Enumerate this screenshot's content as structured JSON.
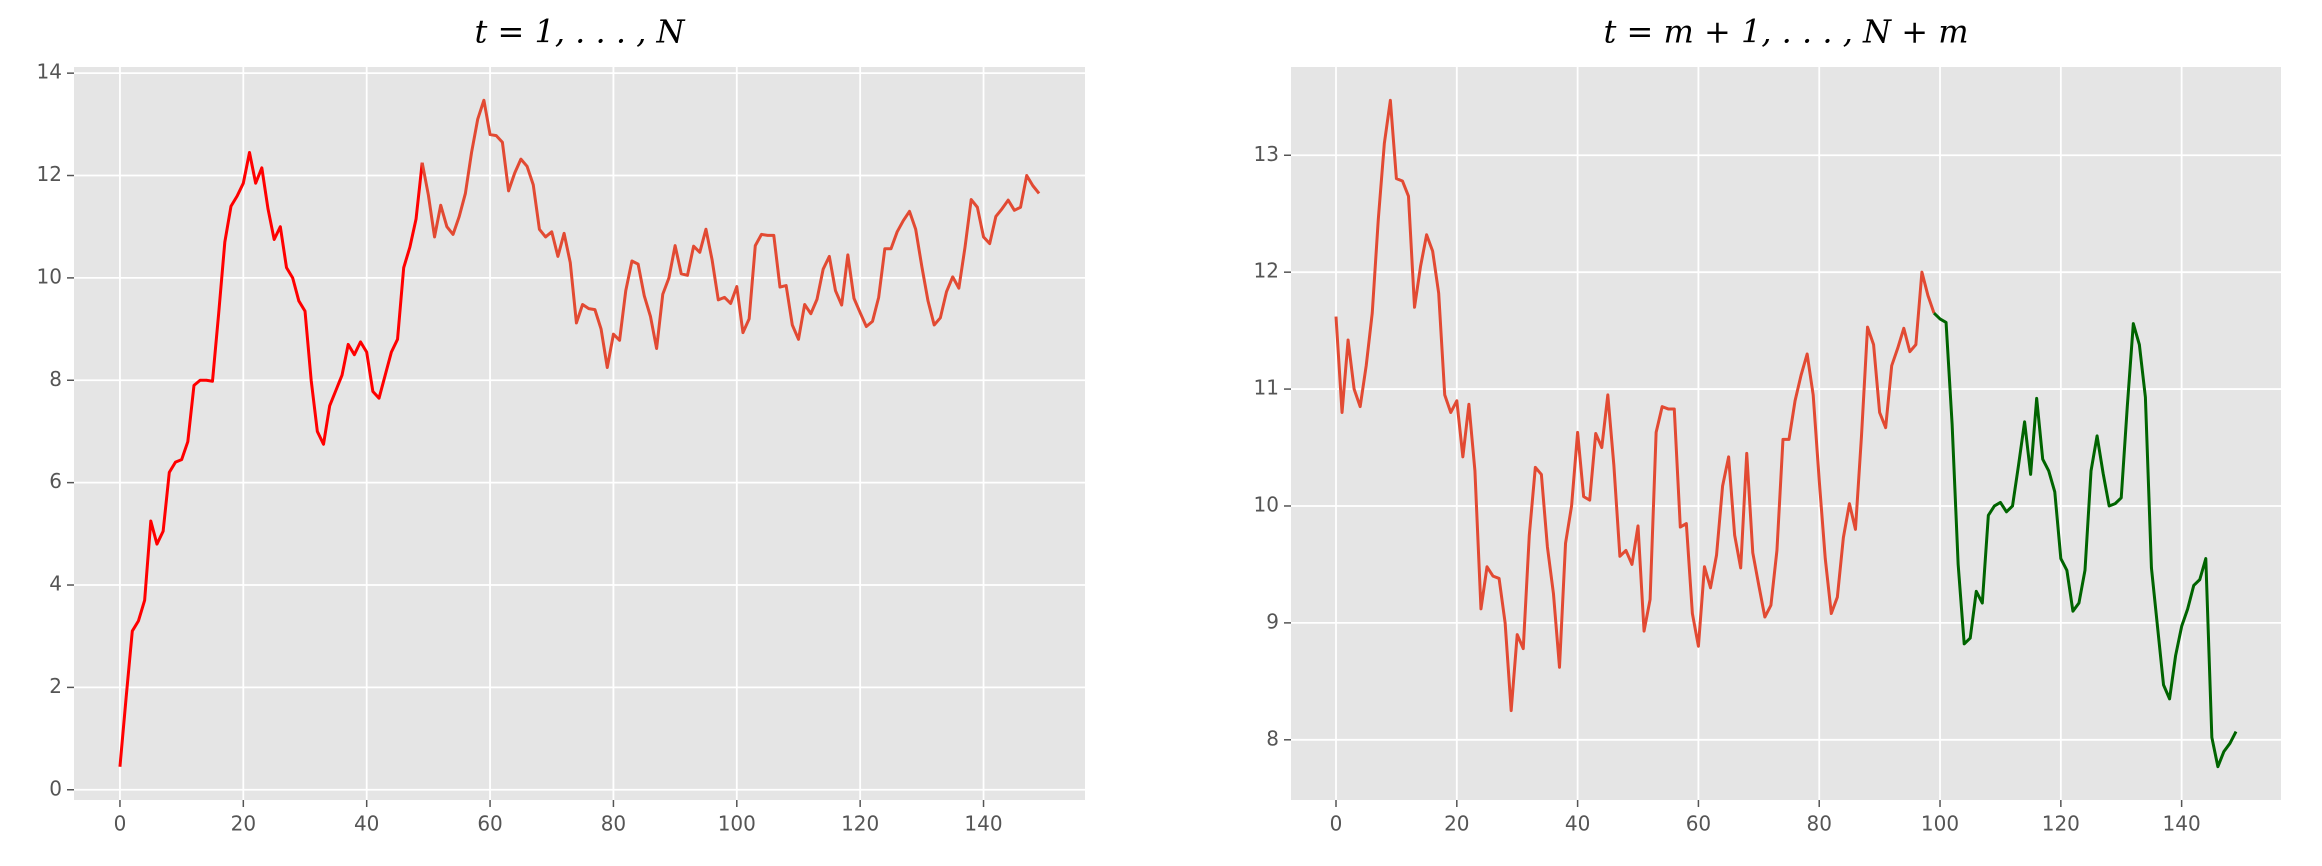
{
  "chart_data": [
    {
      "type": "line",
      "title": "t = 1, . . . , N",
      "x": [
        0,
        1,
        2,
        3,
        4,
        5,
        6,
        7,
        8,
        9,
        10,
        11,
        12,
        13,
        14,
        15,
        16,
        17,
        18,
        19,
        20,
        21,
        22,
        23,
        24,
        25,
        26,
        27,
        28,
        29,
        30,
        31,
        32,
        33,
        34,
        35,
        36,
        37,
        38,
        39,
        40,
        41,
        42,
        43,
        44,
        45,
        46,
        47,
        48,
        49,
        50,
        51,
        52,
        53,
        54,
        55,
        56,
        57,
        58,
        59,
        60,
        61,
        62,
        63,
        64,
        65,
        66,
        67,
        68,
        69,
        70,
        71,
        72,
        73,
        74,
        75,
        76,
        77,
        78,
        79,
        80,
        81,
        82,
        83,
        84,
        85,
        86,
        87,
        88,
        89,
        90,
        91,
        92,
        93,
        94,
        95,
        96,
        97,
        98,
        99,
        100,
        101,
        102,
        103,
        104,
        105,
        106,
        107,
        108,
        109,
        110,
        111,
        112,
        113,
        114,
        115,
        116,
        117,
        118,
        119,
        120,
        121,
        122,
        123,
        124,
        125,
        126,
        127,
        128,
        129,
        130,
        131,
        132,
        133,
        134,
        135,
        136,
        137,
        138,
        139,
        140,
        141,
        142,
        143,
        144,
        145,
        146,
        147,
        148,
        149
      ],
      "series": [
        {
          "color": "#ff0000",
          "values": [
            0.45,
            1.8,
            3.1,
            3.3,
            3.7,
            5.25,
            4.8,
            5.05,
            6.2,
            6.4,
            6.45,
            6.8,
            7.9,
            8.0,
            8.0,
            7.98,
            9.3,
            10.7,
            11.4,
            11.6,
            11.85,
            12.45,
            11.85,
            12.15,
            11.35,
            10.75,
            11.0,
            10.2,
            10.0,
            9.55,
            9.35,
            8.0,
            7.0,
            6.75,
            7.5,
            7.8,
            8.1,
            8.7,
            8.5,
            8.75,
            8.55,
            7.78,
            7.65,
            8.1,
            8.55,
            8.8,
            10.2,
            10.6,
            11.15,
            12.25,
            null,
            null,
            null,
            null,
            null,
            null,
            null,
            null,
            null,
            null,
            null,
            null,
            null,
            null,
            null,
            null,
            null,
            null,
            null,
            null,
            null,
            null,
            null,
            null,
            null,
            null,
            null,
            null,
            null,
            null,
            null,
            null,
            null,
            null,
            null,
            null,
            null,
            null,
            null,
            null,
            null,
            null,
            null,
            null,
            null,
            null,
            null,
            null,
            null,
            null,
            null,
            null,
            null,
            null,
            null,
            null,
            null,
            null,
            null,
            null,
            null,
            null,
            null,
            null,
            null,
            null,
            null,
            null,
            null,
            null,
            null,
            null,
            null,
            null,
            null,
            null,
            null,
            null,
            null,
            null,
            null,
            null,
            null,
            null,
            null,
            null,
            null,
            null,
            null,
            null,
            null,
            null,
            null,
            null,
            null,
            null,
            null,
            null,
            null,
            null
          ]
        },
        {
          "color": "#e24a33",
          "values": [
            null,
            null,
            null,
            null,
            null,
            null,
            null,
            null,
            null,
            null,
            null,
            null,
            null,
            null,
            null,
            null,
            null,
            null,
            null,
            null,
            null,
            null,
            null,
            null,
            null,
            null,
            null,
            null,
            null,
            null,
            null,
            null,
            null,
            null,
            null,
            null,
            null,
            null,
            null,
            null,
            null,
            null,
            null,
            null,
            null,
            null,
            null,
            null,
            null,
            12.25,
            11.62,
            10.8,
            11.42,
            11.0,
            10.85,
            11.2,
            11.65,
            12.45,
            13.1,
            13.47,
            12.8,
            12.78,
            12.65,
            11.7,
            12.05,
            12.32,
            12.18,
            11.82,
            10.95,
            10.8,
            10.9,
            10.42,
            10.87,
            10.3,
            9.12,
            9.48,
            9.4,
            9.38,
            9.0,
            8.25,
            8.9,
            8.78,
            9.75,
            10.33,
            10.27,
            9.65,
            9.25,
            8.62,
            9.68,
            10.0,
            10.63,
            10.08,
            10.05,
            10.62,
            10.5,
            10.95,
            10.35,
            9.57,
            9.62,
            9.5,
            9.83,
            8.93,
            9.2,
            10.63,
            10.85,
            10.83,
            10.83,
            9.82,
            9.85,
            9.08,
            8.8,
            9.48,
            9.3,
            9.58,
            10.17,
            10.42,
            9.75,
            9.47,
            10.45,
            9.6,
            9.32,
            9.05,
            9.15,
            9.62,
            10.57,
            10.57,
            10.9,
            11.12,
            11.3,
            10.95,
            10.22,
            9.55,
            9.08,
            9.22,
            9.73,
            10.02,
            9.8,
            10.6,
            11.53,
            11.38,
            10.8,
            10.67,
            11.2,
            11.35,
            11.52,
            11.32,
            11.38,
            12.0,
            11.8,
            11.65
          ]
        }
      ],
      "xlim": [
        -7.45,
        156.45
      ],
      "xticks": [
        0,
        20,
        40,
        60,
        80,
        100,
        120,
        140
      ],
      "ylim": [
        -0.2,
        14.12
      ],
      "yticks": [
        0,
        2,
        4,
        6,
        8,
        10,
        12,
        14
      ],
      "grid": true
    },
    {
      "type": "line",
      "title": "t = m + 1, . . . , N + m",
      "x": [
        0,
        1,
        2,
        3,
        4,
        5,
        6,
        7,
        8,
        9,
        10,
        11,
        12,
        13,
        14,
        15,
        16,
        17,
        18,
        19,
        20,
        21,
        22,
        23,
        24,
        25,
        26,
        27,
        28,
        29,
        30,
        31,
        32,
        33,
        34,
        35,
        36,
        37,
        38,
        39,
        40,
        41,
        42,
        43,
        44,
        45,
        46,
        47,
        48,
        49,
        50,
        51,
        52,
        53,
        54,
        55,
        56,
        57,
        58,
        59,
        60,
        61,
        62,
        63,
        64,
        65,
        66,
        67,
        68,
        69,
        70,
        71,
        72,
        73,
        74,
        75,
        76,
        77,
        78,
        79,
        80,
        81,
        82,
        83,
        84,
        85,
        86,
        87,
        88,
        89,
        90,
        91,
        92,
        93,
        94,
        95,
        96,
        97,
        98,
        99,
        100,
        101,
        102,
        103,
        104,
        105,
        106,
        107,
        108,
        109,
        110,
        111,
        112,
        113,
        114,
        115,
        116,
        117,
        118,
        119,
        120,
        121,
        122,
        123,
        124,
        125,
        126,
        127,
        128,
        129,
        130,
        131,
        132,
        133,
        134,
        135,
        136,
        137,
        138,
        139,
        140,
        141,
        142,
        143,
        144,
        145,
        146,
        147,
        148,
        149
      ],
      "series": [
        {
          "color": "#e24a33",
          "values": [
            11.62,
            10.8,
            11.42,
            11.0,
            10.85,
            11.2,
            11.65,
            12.45,
            13.1,
            13.47,
            12.8,
            12.78,
            12.65,
            11.7,
            12.05,
            12.32,
            12.18,
            11.82,
            10.95,
            10.8,
            10.9,
            10.42,
            10.87,
            10.3,
            9.12,
            9.48,
            9.4,
            9.38,
            9.0,
            8.25,
            8.9,
            8.78,
            9.75,
            10.33,
            10.27,
            9.65,
            9.25,
            8.62,
            9.68,
            10.0,
            10.63,
            10.08,
            10.05,
            10.62,
            10.5,
            10.95,
            10.35,
            9.57,
            9.62,
            9.5,
            9.83,
            8.93,
            9.2,
            10.63,
            10.85,
            10.83,
            10.83,
            9.82,
            9.85,
            9.08,
            8.8,
            9.48,
            9.3,
            9.58,
            10.17,
            10.42,
            9.75,
            9.47,
            10.45,
            9.6,
            9.32,
            9.05,
            9.15,
            9.62,
            10.57,
            10.57,
            10.9,
            11.12,
            11.3,
            10.95,
            10.22,
            9.55,
            9.08,
            9.22,
            9.73,
            10.02,
            9.8,
            10.6,
            11.53,
            11.38,
            10.8,
            10.67,
            11.2,
            11.35,
            11.52,
            11.32,
            11.38,
            12.0,
            11.8,
            11.65,
            null,
            null,
            null,
            null,
            null,
            null,
            null,
            null,
            null,
            null,
            null,
            null,
            null,
            null,
            null,
            null,
            null,
            null,
            null,
            null,
            null,
            null,
            null,
            null,
            null,
            null,
            null,
            null,
            null,
            null,
            null,
            null,
            null,
            null,
            null,
            null,
            null,
            null,
            null,
            null,
            null,
            null,
            null,
            null,
            null,
            null,
            null,
            null,
            null,
            null
          ]
        },
        {
          "color": "#006400",
          "values": [
            null,
            null,
            null,
            null,
            null,
            null,
            null,
            null,
            null,
            null,
            null,
            null,
            null,
            null,
            null,
            null,
            null,
            null,
            null,
            null,
            null,
            null,
            null,
            null,
            null,
            null,
            null,
            null,
            null,
            null,
            null,
            null,
            null,
            null,
            null,
            null,
            null,
            null,
            null,
            null,
            null,
            null,
            null,
            null,
            null,
            null,
            null,
            null,
            null,
            null,
            null,
            null,
            null,
            null,
            null,
            null,
            null,
            null,
            null,
            null,
            null,
            null,
            null,
            null,
            null,
            null,
            null,
            null,
            null,
            null,
            null,
            null,
            null,
            null,
            null,
            null,
            null,
            null,
            null,
            null,
            null,
            null,
            null,
            null,
            null,
            null,
            null,
            null,
            null,
            null,
            null,
            null,
            null,
            null,
            null,
            null,
            null,
            null,
            null,
            11.65,
            11.6,
            11.57,
            10.7,
            9.5,
            8.82,
            8.87,
            9.27,
            9.17,
            9.92,
            10.0,
            10.03,
            9.95,
            10.0,
            10.35,
            10.72,
            10.27,
            10.92,
            10.4,
            10.3,
            10.12,
            9.55,
            9.45,
            9.1,
            9.17,
            9.45,
            10.3,
            10.6,
            10.28,
            10.0,
            10.02,
            10.07,
            10.85,
            11.56,
            11.38,
            10.93,
            9.47,
            8.97,
            8.47,
            8.35,
            8.72,
            8.97,
            9.12,
            9.32,
            9.37,
            9.55,
            8.02,
            7.77,
            7.9,
            7.97,
            8.07
          ]
        }
      ],
      "xlim": [
        -7.45,
        156.45
      ],
      "xticks": [
        0,
        20,
        40,
        60,
        80,
        100,
        120,
        140
      ],
      "ylim": [
        7.485,
        13.755
      ],
      "yticks": [
        8,
        9,
        10,
        11,
        12,
        13
      ],
      "grid": true
    }
  ]
}
